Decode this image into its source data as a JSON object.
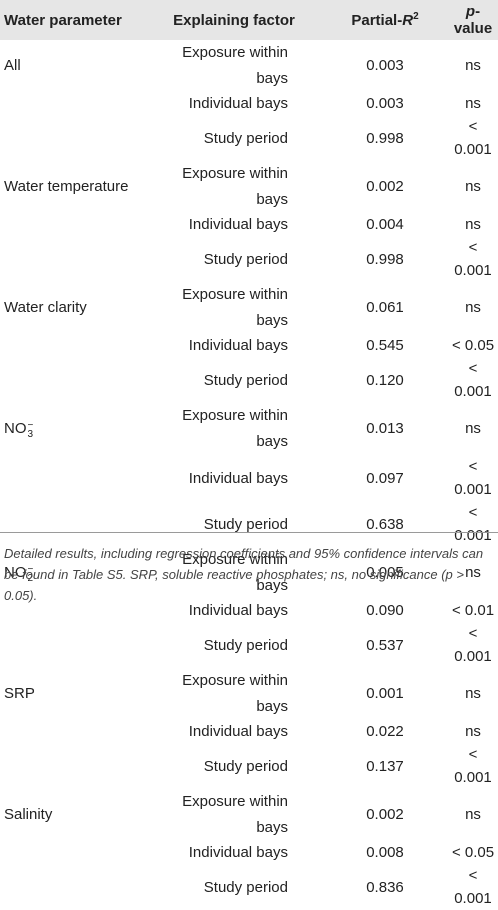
{
  "header": {
    "param": "Water parameter",
    "factor": "Explaining factor",
    "r2_main": "Partial-",
    "r2_var": "R",
    "r2_sup": "2",
    "p_var": "p",
    "p_rest": "-value"
  },
  "groups": [
    {
      "param": "All",
      "rows": [
        {
          "factor": "Exposure within bays",
          "r2": "0.003",
          "p": "ns"
        },
        {
          "factor": "Individual bays",
          "r2": "0.003",
          "p": "ns"
        },
        {
          "factor": "Study period",
          "r2": "0.998",
          "p": "< 0.001"
        }
      ]
    },
    {
      "param": "Water temperature",
      "rows": [
        {
          "factor": "Exposure within bays",
          "r2": "0.002",
          "p": "ns"
        },
        {
          "factor": "Individual bays",
          "r2": "0.004",
          "p": "ns"
        },
        {
          "factor": "Study period",
          "r2": "0.998",
          "p": "< 0.001"
        }
      ]
    },
    {
      "param": "Water clarity",
      "rows": [
        {
          "factor": "Exposure within bays",
          "r2": "0.061",
          "p": "ns"
        },
        {
          "factor": "Individual bays",
          "r2": "0.545",
          "p": "< 0.05"
        },
        {
          "factor": "Study period",
          "r2": "0.120",
          "p": "< 0.001"
        }
      ]
    },
    {
      "param": "NO",
      "param_sub": "3",
      "param_sup": "−",
      "rows": [
        {
          "factor": "Exposure within bays",
          "r2": "0.013",
          "p": "ns"
        },
        {
          "factor": "Individual bays",
          "r2": "0.097",
          "p": "< 0.001"
        },
        {
          "factor": "Study period",
          "r2": "0.638",
          "p": "< 0.001"
        }
      ]
    },
    {
      "param": "NO",
      "param_sub": "2",
      "param_sup": "−",
      "rows": [
        {
          "factor": "Exposure within bays",
          "r2": "0.005",
          "p": "ns"
        },
        {
          "factor": "Individual bays",
          "r2": "0.090",
          "p": "< 0.01"
        },
        {
          "factor": "Study period",
          "r2": "0.537",
          "p": "< 0.001"
        }
      ]
    },
    {
      "param": "SRP",
      "rows": [
        {
          "factor": "Exposure within bays",
          "r2": "0.001",
          "p": "ns"
        },
        {
          "factor": "Individual bays",
          "r2": "0.022",
          "p": "ns"
        },
        {
          "factor": "Study period",
          "r2": "0.137",
          "p": "< 0.001"
        }
      ]
    },
    {
      "param": "Salinity",
      "rows": [
        {
          "factor": "Exposure within bays",
          "r2": "0.002",
          "p": "ns"
        },
        {
          "factor": "Individual bays",
          "r2": "0.008",
          "p": "< 0.05"
        },
        {
          "factor": "Study period",
          "r2": "0.836",
          "p": "< 0.001"
        }
      ]
    }
  ],
  "footnote": "Detailed results, including regression coefficients and 95% confidence intervals can be found in Table S5. SRP, soluble reactive phosphates; ns, no significance (p > 0.05)."
}
